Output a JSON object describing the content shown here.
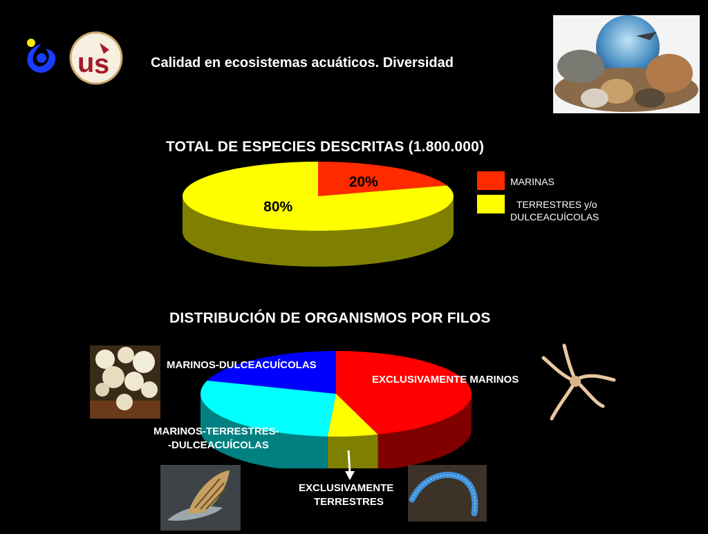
{
  "header": {
    "title": "Calidad en ecosistemas acuáticos. Diversidad",
    "logo_left_icon": "university-logo-icon",
    "logo_us_icon": "university-of-seville-seal-icon",
    "globe_image": "animals-globe-image"
  },
  "colors": {
    "background": "#000000",
    "marinas": "#ff2a00",
    "terrestres": "#ffff00",
    "exclusivamente_marinos": "#ff0000",
    "marinos_dulceacuicolas": "#0000ff",
    "marinos_terrestres_dulceacuicolas": "#00ffff",
    "exclusivamente_terrestres": "#ffff00"
  },
  "chart_data": [
    {
      "type": "pie",
      "title": "TOTAL DE ESPECIES DESCRITAS (1.800.000)",
      "categories": [
        "MARINAS",
        "TERRESTRES y/o DULCEACUÍCOLAS"
      ],
      "values": [
        20,
        80
      ],
      "data_labels": [
        "20%",
        "80%"
      ],
      "legend": {
        "placement": "right",
        "entries": [
          "MARINAS",
          "TERRESTRES y/o",
          "DULCEACUÍCOLAS"
        ]
      }
    },
    {
      "type": "pie",
      "title": "DISTRIBUCIÓN DE ORGANISMOS POR FILOS",
      "categories": [
        "EXCLUSIVAMENTE MARINOS",
        "EXCLUSIVAMENTE TERRESTRES",
        "MARINOS-TERRESTRES-DULCEACUÍCOLAS",
        "MARINOS-DULCEACUÍCOLAS"
      ],
      "values": [
        45,
        6,
        29,
        20
      ],
      "slice_labels": {
        "exclusivamente_marinos": "EXCLUSIVAMENTE MARINOS",
        "marinos_dulceacuicolas": "MARINOS-DULCEACUÍCOLAS",
        "mtd_line1": "MARINOS-TERRESTRES-",
        "mtd_line2": "-DULCEACUÍCOLAS",
        "exclusivamente_terrestres_line1": "EXCLUSIVAMENTE",
        "exclusivamente_terrestres_line2": "TERRESTRES"
      },
      "images": [
        "coral-photo",
        "starfish-photo",
        "snail-photo",
        "worm-photo"
      ]
    }
  ]
}
